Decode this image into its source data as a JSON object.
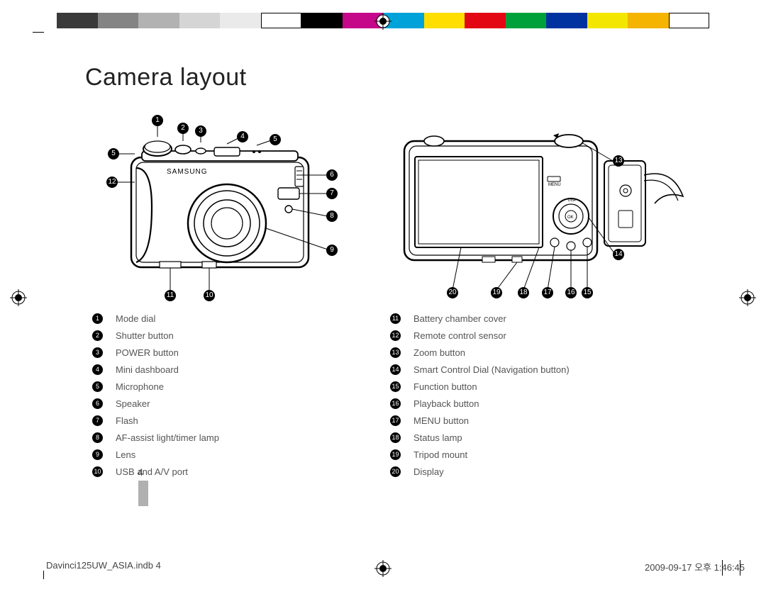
{
  "colorbar": {
    "swatches": [
      "#3a3a3a",
      "#848484",
      "#b2b2b2",
      "#d5d5d5",
      "#eaeaea",
      "#ffffff",
      "#000000",
      "#c40889",
      "#00a3d9",
      "#ffde00",
      "#e30613",
      "#00a13a",
      "#0033a0",
      "#f3e600",
      "#f4b400",
      "#ffffff"
    ]
  },
  "title": "Camera layout",
  "front_callouts": [
    "1",
    "2",
    "3",
    "4",
    "5",
    "5",
    "6",
    "7",
    "8",
    "9",
    "10",
    "11",
    "12"
  ],
  "back_callouts": [
    "13",
    "14",
    "15",
    "16",
    "17",
    "18",
    "19",
    "20"
  ],
  "legend_left": [
    {
      "n": "1",
      "label": "Mode dial"
    },
    {
      "n": "2",
      "label": "Shutter button"
    },
    {
      "n": "3",
      "label": "POWER button"
    },
    {
      "n": "4",
      "label": "Mini dashboard"
    },
    {
      "n": "5",
      "label": "Microphone"
    },
    {
      "n": "6",
      "label": "Speaker"
    },
    {
      "n": "7",
      "label": "Flash"
    },
    {
      "n": "8",
      "label": "AF-assist light/timer lamp"
    },
    {
      "n": "9",
      "label": "Lens"
    },
    {
      "n": "10",
      "label": "USB and A/V port"
    }
  ],
  "legend_right": [
    {
      "n": "11",
      "label": "Battery chamber cover"
    },
    {
      "n": "12",
      "label": "Remote control sensor"
    },
    {
      "n": "13",
      "label": "Zoom button"
    },
    {
      "n": "14",
      "label": "Smart Control Dial (Navigation button)"
    },
    {
      "n": "15",
      "label": "Function button"
    },
    {
      "n": "16",
      "label": "Playback button"
    },
    {
      "n": "17",
      "label": "MENU button"
    },
    {
      "n": "18",
      "label": "Status lamp"
    },
    {
      "n": "19",
      "label": "Tripod mount"
    },
    {
      "n": "20",
      "label": "Display"
    }
  ],
  "page_number": "4",
  "footer": {
    "left": "Davinci125UW_ASIA.indb   4",
    "right": "2009-09-17   오후 1:46:45"
  }
}
